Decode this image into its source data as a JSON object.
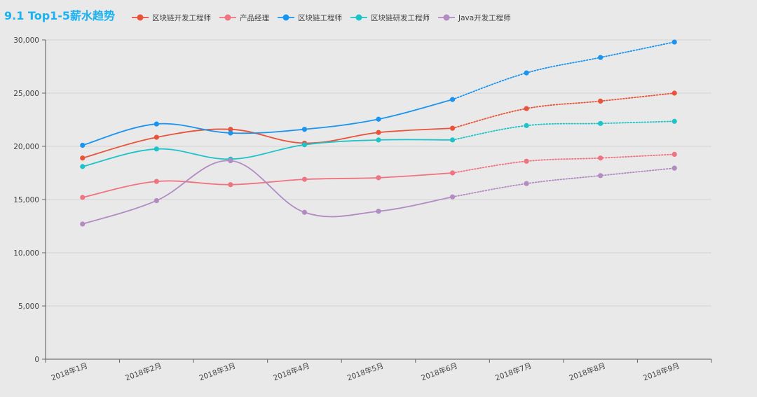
{
  "chart_data": {
    "type": "line",
    "title": "9.1 Top1-5薪水趋势",
    "xlabel": "",
    "ylabel": "",
    "categories": [
      "2018年1月",
      "2018年2月",
      "2018年3月",
      "2018年4月",
      "2018年5月",
      "2018年6月",
      "2018年7月",
      "2018年8月",
      "2018年9月"
    ],
    "yticks": [
      "0",
      "5,000",
      "10,000",
      "15,000",
      "20,000",
      "25,000",
      "30,000"
    ],
    "ylim": [
      0,
      30000
    ],
    "grid": true,
    "legend_position": "top",
    "actual_through": "2018年6月",
    "projection_style": "dotted",
    "series": [
      {
        "name": "区块链开发工程师",
        "color": "#e8533a",
        "values": [
          18900,
          20850,
          21600,
          20300,
          21300,
          21700,
          23550,
          24250,
          25000
        ]
      },
      {
        "name": "产品经理",
        "color": "#f07381",
        "values": [
          15200,
          16700,
          16400,
          16900,
          17050,
          17500,
          18600,
          18900,
          19250
        ]
      },
      {
        "name": "区块链工程师",
        "color": "#1a94ee",
        "values": [
          20100,
          22100,
          21250,
          21600,
          22550,
          24400,
          26900,
          28350,
          29800
        ]
      },
      {
        "name": "区块链研发工程师",
        "color": "#1cc4c9",
        "values": [
          18100,
          19750,
          18800,
          20150,
          20600,
          20600,
          21950,
          22150,
          22350
        ]
      },
      {
        "name": "Java开发工程师",
        "color": "#b18bc2",
        "values": [
          12700,
          14900,
          18650,
          13800,
          13900,
          15250,
          16500,
          17250,
          17950
        ]
      }
    ]
  }
}
